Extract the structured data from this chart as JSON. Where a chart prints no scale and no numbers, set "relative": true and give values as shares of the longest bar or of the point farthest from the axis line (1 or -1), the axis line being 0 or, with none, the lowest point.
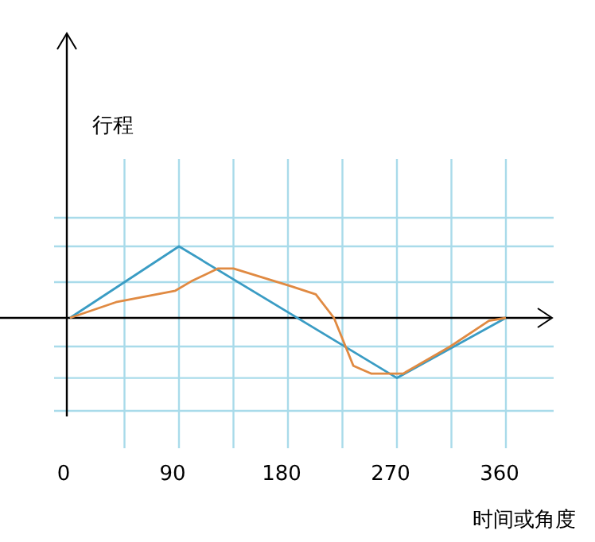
{
  "chart_data": {
    "type": "line",
    "relative": true,
    "xlabel": "时间或角度",
    "annotations": [
      "行程"
    ],
    "xlim": [
      0,
      360
    ],
    "xticks": [
      0,
      {
        "value": 45,
        "label": null
      },
      90,
      {
        "value": 135,
        "label": null
      },
      180,
      {
        "value": 225,
        "label": null
      },
      270,
      {
        "value": 315,
        "label": null
      },
      360
    ],
    "grid": true,
    "series": [
      {
        "color": "#3a9cc4",
        "x": [
          0,
          90,
          270,
          360
        ],
        "values": [
          0,
          1,
          -0.84,
          0
        ]
      },
      {
        "color": "#e08a42",
        "x": [
          0,
          38,
          87,
          100,
          122,
          135,
          183,
          203,
          218,
          234,
          249,
          275,
          314,
          346,
          360
        ],
        "values": [
          0,
          0.22,
          0.38,
          0.51,
          0.69,
          0.69,
          0.44,
          0.33,
          0,
          -0.67,
          -0.78,
          -0.78,
          -0.4,
          -0.04,
          0
        ]
      }
    ]
  }
}
